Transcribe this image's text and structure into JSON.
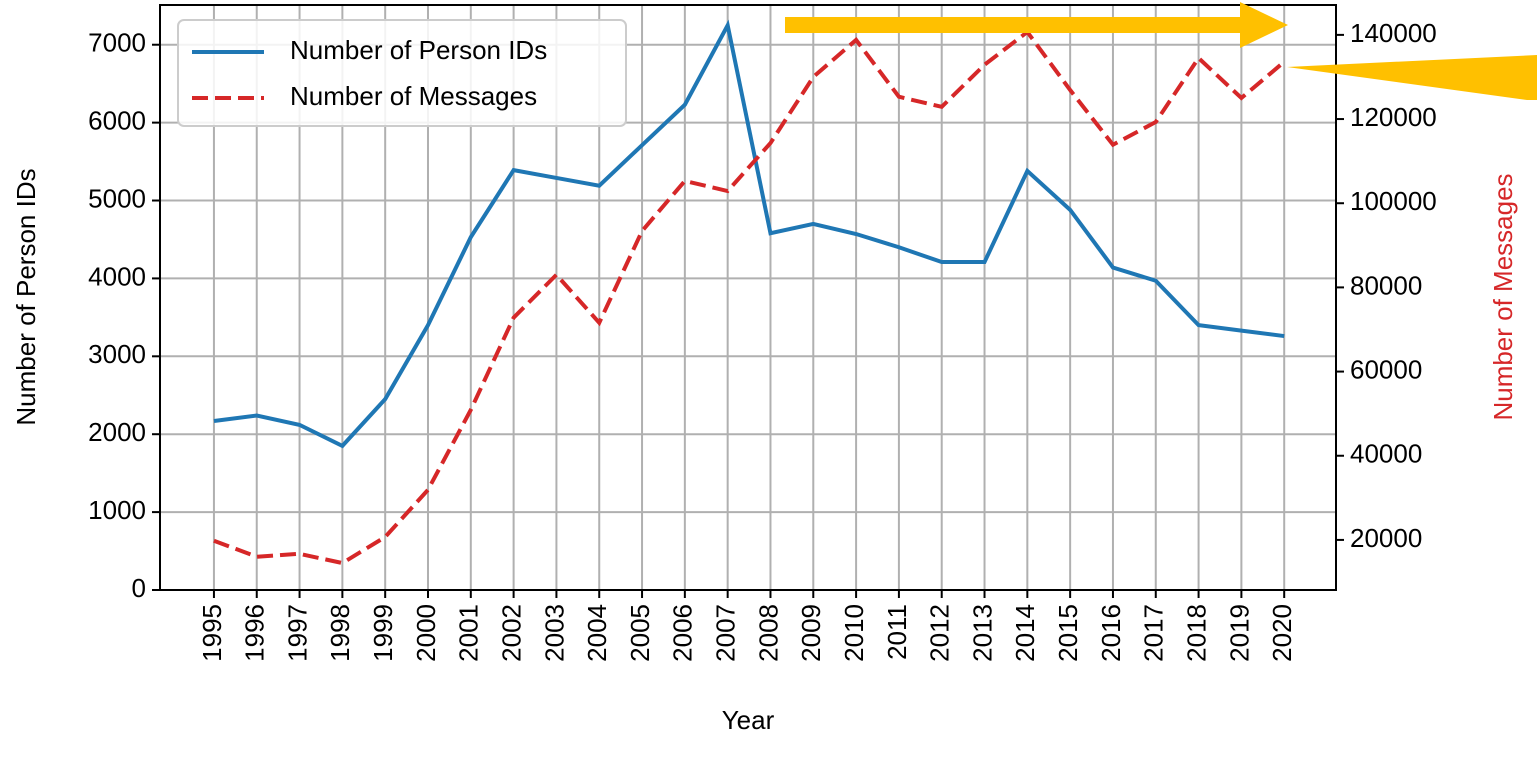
{
  "chart_data": {
    "type": "line",
    "xlabel": "Year",
    "ylabel": "Number of Person IDs",
    "y2label": "Number of Messages",
    "x": [
      1995,
      1996,
      1997,
      1998,
      1999,
      2000,
      2001,
      2002,
      2003,
      2004,
      2005,
      2006,
      2007,
      2008,
      2009,
      2010,
      2011,
      2012,
      2013,
      2014,
      2015,
      2016,
      2017,
      2018,
      2019,
      2020
    ],
    "xlim": [
      1993.74,
      2021.21
    ],
    "xticks": [
      1995,
      1996,
      1997,
      1998,
      1999,
      2000,
      2001,
      2002,
      2003,
      2004,
      2005,
      2006,
      2007,
      2008,
      2009,
      2010,
      2011,
      2012,
      2013,
      2014,
      2015,
      2016,
      2017,
      2018,
      2019,
      2020
    ],
    "ylim": [
      0,
      7510
    ],
    "yticks": [
      0,
      1000,
      2000,
      3000,
      4000,
      5000,
      6000,
      7000
    ],
    "y2lim": [
      8100,
      147100
    ],
    "y2ticks": [
      20000,
      40000,
      60000,
      80000,
      100000,
      120000,
      140000
    ],
    "grid": true,
    "legend": "upper left",
    "y2color": "#d62728",
    "series": [
      {
        "name": "Number of Person IDs",
        "color": "#1f77b4",
        "linestyle": "solid",
        "values": [
          2170,
          2240,
          2120,
          1850,
          2450,
          3400,
          4530,
          5390,
          5290,
          5190,
          5710,
          6230,
          7250,
          4580,
          4700,
          4570,
          4400,
          4210,
          4210,
          5380,
          4880,
          4140,
          3970,
          3400,
          3330,
          3260
        ]
      },
      {
        "name": "Number of Messages",
        "color": "#d62728",
        "linestyle": "dashed",
        "axis": "y2",
        "values": [
          19800,
          16000,
          16700,
          14500,
          20700,
          31900,
          50900,
          72800,
          83000,
          71600,
          93400,
          105300,
          102900,
          114300,
          130000,
          138800,
          125300,
          122900,
          132900,
          140700,
          126900,
          113900,
          119300,
          134500,
          125000,
          133600
        ]
      }
    ]
  }
}
